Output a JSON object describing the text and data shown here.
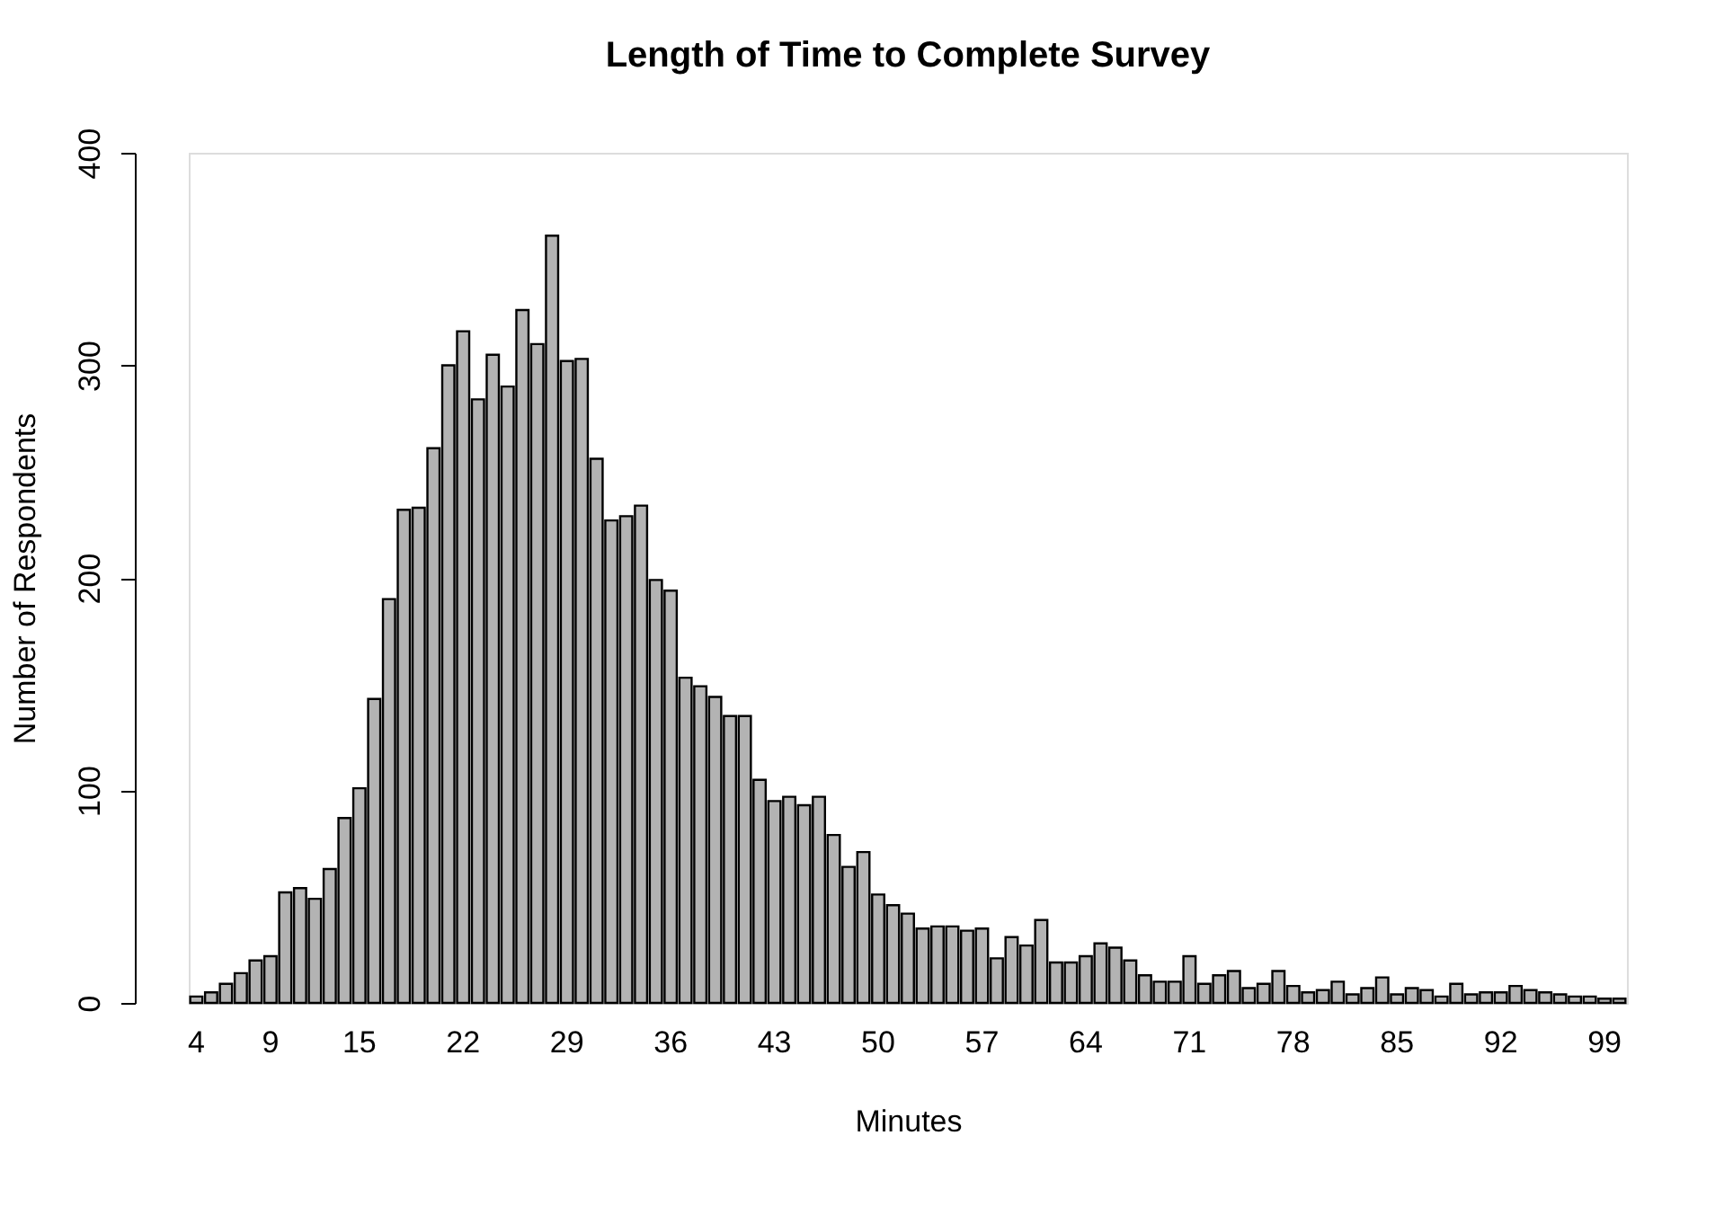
{
  "chart_data": {
    "type": "bar",
    "title": "Length of Time to Complete Survey",
    "xlabel": "Minutes",
    "ylabel": "Number of Respondents",
    "categories": [
      "4",
      null,
      null,
      null,
      null,
      "9",
      null,
      null,
      null,
      null,
      null,
      "15",
      null,
      null,
      null,
      null,
      null,
      null,
      "22",
      null,
      null,
      null,
      null,
      null,
      null,
      "29",
      null,
      null,
      null,
      null,
      null,
      null,
      "36",
      null,
      null,
      null,
      null,
      null,
      null,
      "43",
      null,
      null,
      null,
      null,
      null,
      null,
      "50",
      null,
      null,
      null,
      null,
      null,
      null,
      "57",
      null,
      null,
      null,
      null,
      null,
      null,
      "64",
      null,
      null,
      null,
      null,
      null,
      null,
      "71",
      null,
      null,
      null,
      null,
      null,
      null,
      "78",
      null,
      null,
      null,
      null,
      null,
      null,
      "85",
      null,
      null,
      null,
      null,
      null,
      null,
      "92",
      null,
      null,
      null,
      null,
      null,
      null,
      "99",
      null
    ],
    "values": [
      3,
      5,
      9,
      14,
      20,
      22,
      52,
      54,
      49,
      63,
      87,
      101,
      143,
      190,
      232,
      233,
      261,
      300,
      316,
      284,
      305,
      290,
      326,
      310,
      361,
      302,
      303,
      256,
      227,
      229,
      234,
      199,
      194,
      153,
      149,
      144,
      135,
      135,
      105,
      95,
      97,
      93,
      97,
      79,
      64,
      71,
      51,
      46,
      42,
      35,
      36,
      36,
      34,
      35,
      21,
      31,
      27,
      39,
      19,
      19,
      22,
      28,
      26,
      20,
      13,
      10,
      10,
      22,
      9,
      13,
      15,
      7,
      9,
      15,
      8,
      5,
      6,
      10,
      4,
      7,
      12,
      4,
      7,
      6,
      3,
      9,
      4,
      5,
      5,
      8,
      6,
      5,
      4,
      3,
      3,
      2,
      2
    ],
    "color": "#b3b3b3",
    "ylim": [
      0,
      400
    ],
    "yticks": [
      0,
      100,
      200,
      300,
      400
    ],
    "grid": false
  }
}
